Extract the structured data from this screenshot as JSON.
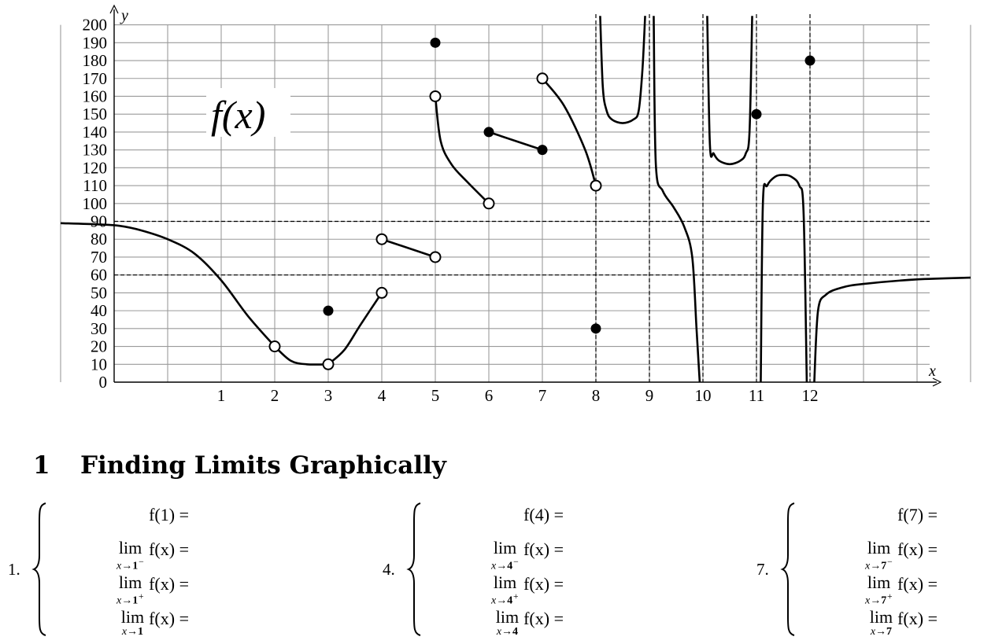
{
  "chart_data": {
    "type": "line",
    "title": "f(x)",
    "xlabel": "x",
    "ylabel": "y",
    "xlim": [
      -2,
      15
    ],
    "ylim": [
      0,
      200
    ],
    "x_ticks": [
      "1",
      "2",
      "3",
      "4",
      "5",
      "6",
      "7",
      "8",
      "9",
      "10",
      "11",
      "12"
    ],
    "y_ticks": [
      "0",
      "10",
      "20",
      "30",
      "40",
      "50",
      "60",
      "70",
      "80",
      "90",
      "100",
      "110",
      "120",
      "130",
      "140",
      "150",
      "160",
      "170",
      "180",
      "190",
      "200"
    ],
    "grid": true,
    "horizontal_asymptotes": [
      90,
      60
    ],
    "vertical_asymptotes": [
      8,
      9,
      10,
      11,
      12
    ],
    "series": [
      {
        "x": [
          -2,
          -1.3,
          -0.9,
          -0.5,
          0,
          0.5,
          1,
          1.5,
          2
        ],
        "y": [
          89,
          88.3,
          87.5,
          85,
          80,
          72,
          57,
          37,
          20
        ]
      },
      {
        "x": [
          2,
          2.3,
          2.6,
          3
        ],
        "y": [
          20,
          12,
          10,
          10
        ]
      },
      {
        "x": [
          3,
          3.3,
          3.6,
          4
        ],
        "y": [
          10,
          18,
          32,
          50
        ]
      },
      {
        "x": [
          4,
          5
        ],
        "y": [
          80,
          70
        ]
      },
      {
        "x": [
          5,
          5.1,
          5.3,
          5.6,
          6
        ],
        "y": [
          160,
          135,
          122,
          112,
          100
        ]
      },
      {
        "x": [
          6,
          7
        ],
        "y": [
          140,
          130
        ]
      },
      {
        "x": [
          7,
          7.4,
          7.8,
          8
        ],
        "y": [
          170,
          155,
          130,
          110
        ]
      },
      {
        "x": [
          8.08,
          8.13,
          8.2,
          8.3,
          8.5,
          8.7,
          8.8,
          8.87,
          8.92
        ],
        "y": [
          205,
          165,
          152,
          147,
          145,
          147,
          152,
          175,
          205
        ]
      },
      {
        "x": [
          9.08,
          9.12,
          9.25,
          9.45,
          9.65,
          9.8,
          9.88,
          9.94
        ],
        "y": [
          205,
          122,
          107,
          98,
          87,
          70,
          30,
          0
        ]
      },
      {
        "x": [
          10.08,
          10.13,
          10.2,
          10.3,
          10.5,
          10.7,
          10.8,
          10.87,
          10.92
        ],
        "y": [
          205,
          133,
          128,
          124,
          122,
          124,
          128,
          140,
          205
        ]
      },
      {
        "x": [
          11.08,
          11.12,
          11.2,
          11.35,
          11.5,
          11.65,
          11.8,
          11.88,
          11.94
        ],
        "y": [
          0,
          100,
          110,
          115,
          116,
          115,
          110,
          95,
          0
        ]
      },
      {
        "x": [
          12.08,
          12.15,
          12.3,
          12.6,
          13,
          14,
          15
        ],
        "y": [
          0,
          40,
          49,
          53,
          55,
          57.5,
          58.5
        ]
      }
    ],
    "closed_points": [
      {
        "x": 3,
        "y": 40
      },
      {
        "x": 5,
        "y": 190
      },
      {
        "x": 6,
        "y": 140
      },
      {
        "x": 7,
        "y": 130
      },
      {
        "x": 8,
        "y": 30
      },
      {
        "x": 11,
        "y": 150
      },
      {
        "x": 12,
        "y": 180
      }
    ],
    "open_points": [
      {
        "x": 2,
        "y": 20
      },
      {
        "x": 3,
        "y": 10
      },
      {
        "x": 4,
        "y": 80
      },
      {
        "x": 4,
        "y": 50
      },
      {
        "x": 5,
        "y": 160
      },
      {
        "x": 5,
        "y": 70
      },
      {
        "x": 6,
        "y": 100
      },
      {
        "x": 7,
        "y": 170
      },
      {
        "x": 8,
        "y": 110
      }
    ]
  },
  "section": {
    "number": "1",
    "title": "Finding Limits Graphically"
  },
  "problems": [
    {
      "label": "1.",
      "fval": "f(1) =",
      "var": "x→",
      "point": "1",
      "lim_left_sup": "−",
      "lim_right_sup": "+",
      "lim_word": "lim",
      "lim_expr": "f(x) ="
    },
    {
      "label": "4.",
      "fval": "f(4) =",
      "var": "x→",
      "point": "4",
      "lim_left_sup": "−",
      "lim_right_sup": "+",
      "lim_word": "lim",
      "lim_expr": "f(x) ="
    },
    {
      "label": "7.",
      "fval": "f(7) =",
      "var": "x→",
      "point": "7",
      "lim_left_sup": "−",
      "lim_right_sup": "+",
      "lim_word": "lim",
      "lim_expr": "f(x) ="
    }
  ]
}
